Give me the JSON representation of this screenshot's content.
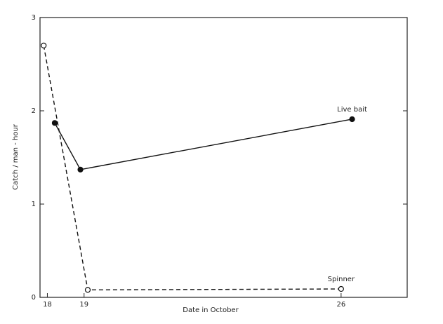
{
  "chart_data": {
    "type": "line",
    "xlabel": "Date in October",
    "ylabel": "Catch / man - hour",
    "xlim": [
      17.8,
      27.8
    ],
    "xticks": [
      18,
      19,
      26
    ],
    "ylim": [
      0,
      3
    ],
    "yticks": [
      0,
      1,
      2,
      3
    ],
    "series": [
      {
        "name": "Live bait",
        "color": "#111111",
        "style": "solid",
        "marker": "filled",
        "x": [
          18.2,
          18.9,
          26.3
        ],
        "values": [
          1.87,
          1.37,
          1.91
        ]
      },
      {
        "name": "Spinner",
        "color": "#111111",
        "style": "dashed",
        "marker": "open",
        "x": [
          17.9,
          19.1,
          26.0
        ],
        "values": [
          2.7,
          0.08,
          0.09
        ]
      }
    ]
  }
}
